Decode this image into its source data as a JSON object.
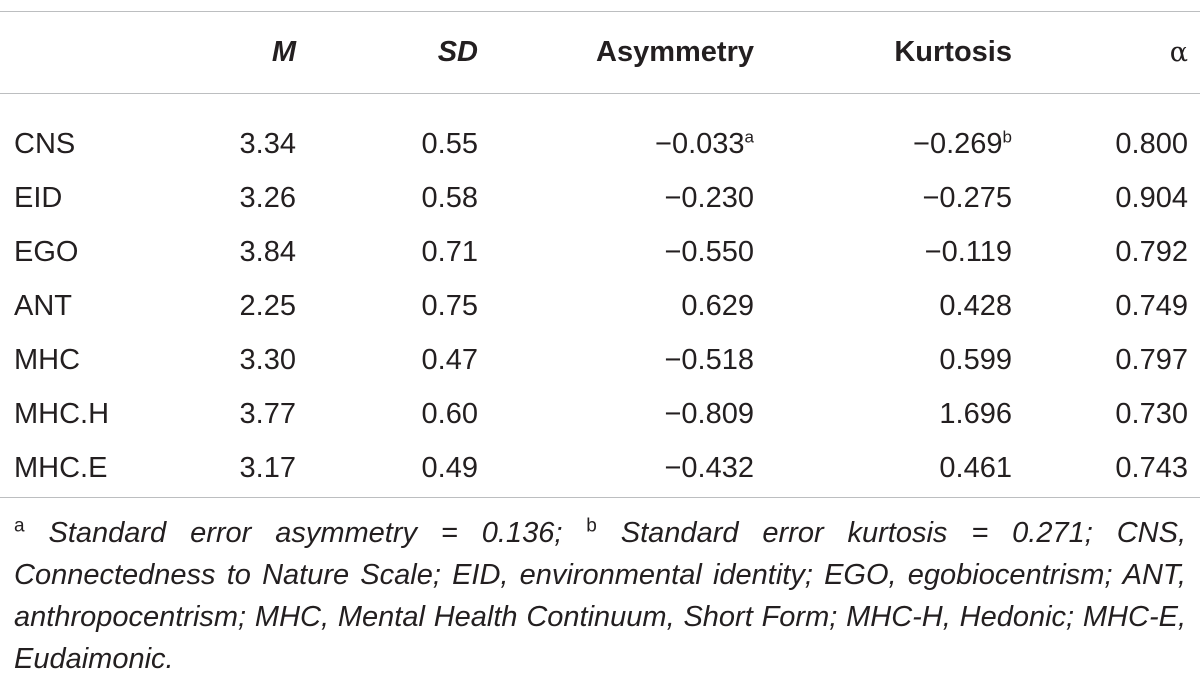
{
  "table": {
    "headers": [
      "",
      "M",
      "SD",
      "Asymmetry",
      "Kurtosis",
      "α"
    ],
    "rows": [
      {
        "label": "CNS",
        "m": "3.34",
        "sd": "0.55",
        "asym": "−0.033",
        "asym_sup": "a",
        "kurt": "−0.269",
        "kurt_sup": "b",
        "alpha": "0.800"
      },
      {
        "label": "EID",
        "m": "3.26",
        "sd": "0.58",
        "asym": "−0.230",
        "kurt": "−0.275",
        "alpha": "0.904"
      },
      {
        "label": "EGO",
        "m": "3.84",
        "sd": "0.71",
        "asym": "−0.550",
        "kurt": "−0.119",
        "alpha": "0.792"
      },
      {
        "label": "ANT",
        "m": "2.25",
        "sd": "0.75",
        "asym": "0.629",
        "kurt": "0.428",
        "alpha": "0.749"
      },
      {
        "label": "MHC",
        "m": "3.30",
        "sd": "0.47",
        "asym": "−0.518",
        "kurt": "0.599",
        "alpha": "0.797"
      },
      {
        "label": "MHC.H",
        "m": "3.77",
        "sd": "0.60",
        "asym": "−0.809",
        "kurt": "1.696",
        "alpha": "0.730"
      },
      {
        "label": "MHC.E",
        "m": "3.17",
        "sd": "0.49",
        "asym": "−0.432",
        "kurt": "0.461",
        "alpha": "0.743"
      }
    ]
  },
  "footnote": {
    "sup_a": "a",
    "part_a": " Standard error asymmetry = 0.136; ",
    "sup_b": "b",
    "part_b": " Standard error kurtosis = 0.271; CNS, Connectedness to Nature Scale; EID, environmental identity; EGO, egobiocentrism; ANT, anthropocentrism; MHC, Mental Health Continuum, Short Form; MHC-H, Hedonic; MHC-E, Eudaimonic."
  }
}
